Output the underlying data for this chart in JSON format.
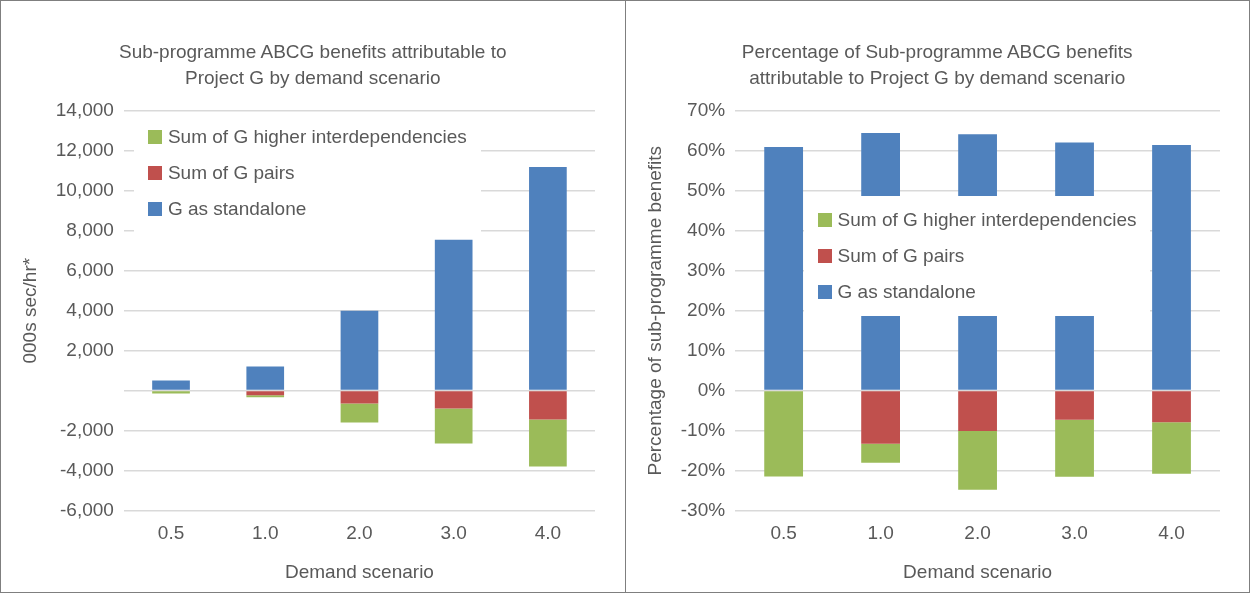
{
  "chart_data": [
    {
      "type": "bar",
      "title": "Sub-programme ABCG benefits attributable to Project G by demand scenario",
      "xlabel": "Demand scenario",
      "ylabel": "000s sec/hr*",
      "categories": [
        "0.5",
        "1.0",
        "2.0",
        "3.0",
        "4.0"
      ],
      "stacked": true,
      "series": [
        {
          "name": "G as standalone",
          "color": "#4f81bd",
          "values": [
            500,
            1200,
            4000,
            7550,
            11200
          ]
        },
        {
          "name": "Sum of G pairs",
          "color": "#c0504d",
          "values": [
            0,
            -230,
            -650,
            -900,
            -1450
          ]
        },
        {
          "name": "Sum of G higher interdependencies",
          "color": "#9bbb59",
          "values": [
            -150,
            -100,
            -950,
            -1750,
            -2350
          ]
        }
      ],
      "ylim": [
        -6000,
        14000
      ],
      "yticks": [
        {
          "value": -6000,
          "label": "-6,000"
        },
        {
          "value": -4000,
          "label": "-4,000"
        },
        {
          "value": -2000,
          "label": "-2,000"
        },
        {
          "value": 0,
          "label": null
        },
        {
          "value": 2000,
          "label": "2,000"
        },
        {
          "value": 4000,
          "label": "4,000"
        },
        {
          "value": 6000,
          "label": "6,000"
        },
        {
          "value": 8000,
          "label": "8,000"
        },
        {
          "value": 10000,
          "label": "10,000"
        },
        {
          "value": 12000,
          "label": "12,000"
        },
        {
          "value": 14000,
          "label": "14,000"
        }
      ],
      "grid": "y",
      "legend": "top left"
    },
    {
      "type": "bar",
      "title": "Percentage of Sub-programme ABCG benefits attributable to Project G by demand scenario",
      "xlabel": "Demand scenario",
      "ylabel": "Percentage of sub-programme benefits",
      "categories": [
        "0.5",
        "1.0",
        "2.0",
        "3.0",
        "4.0"
      ],
      "stacked": true,
      "series": [
        {
          "name": "G as standalone",
          "color": "#4f81bd",
          "values": [
            61,
            64.5,
            64.2,
            62.1,
            61.5
          ]
        },
        {
          "name": "Sum of G pairs",
          "color": "#c0504d",
          "values": [
            0,
            -13.3,
            -10.1,
            -7.3,
            -7.9
          ]
        },
        {
          "name": "Sum of G higher interdependencies",
          "color": "#9bbb59",
          "values": [
            -21.5,
            -4.8,
            -14.7,
            -14.3,
            -12.9
          ]
        }
      ],
      "ylim": [
        -30,
        70
      ],
      "yticks": [
        {
          "value": -30,
          "label": "-30%"
        },
        {
          "value": -20,
          "label": "-20%"
        },
        {
          "value": -10,
          "label": "-10%"
        },
        {
          "value": 0,
          "label": "0%"
        },
        {
          "value": 10,
          "label": "10%"
        },
        {
          "value": 20,
          "label": "20%"
        },
        {
          "value": 30,
          "label": "30%"
        },
        {
          "value": 40,
          "label": "40%"
        },
        {
          "value": 50,
          "label": "50%"
        },
        {
          "value": 60,
          "label": "60%"
        },
        {
          "value": 70,
          "label": "70%"
        }
      ],
      "grid": "y",
      "legend": "center"
    }
  ]
}
